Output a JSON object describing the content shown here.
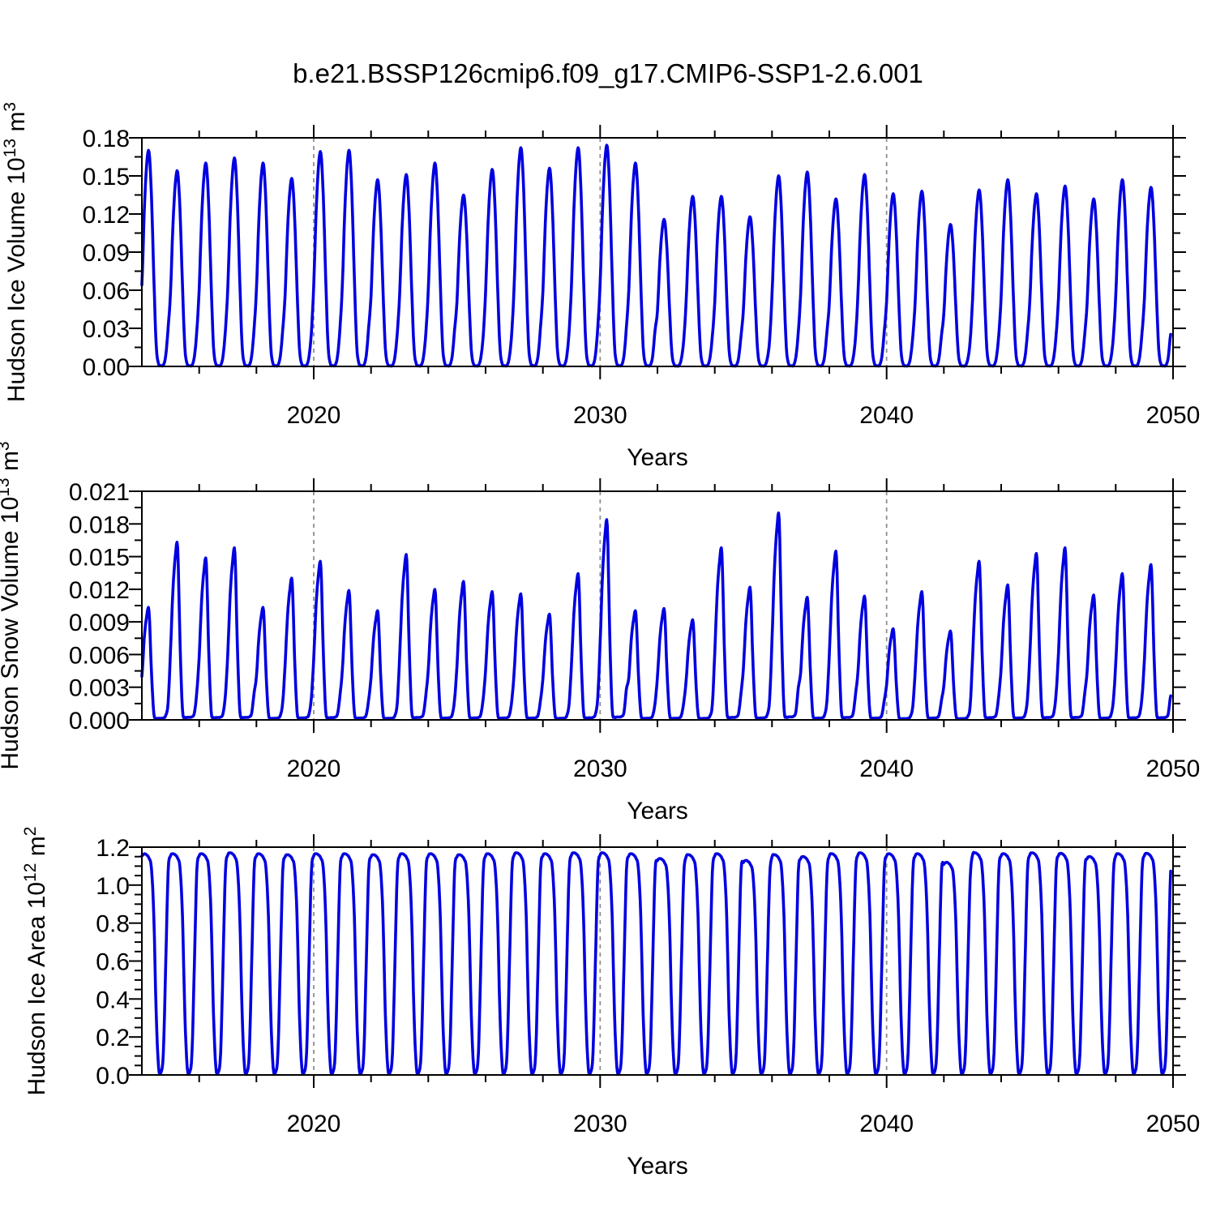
{
  "title": "b.e21.BSSP126cmip6.f09_g17.CMIP6-SSP1-2.6.001",
  "line_color": "#0000e0",
  "grid_color": "#8f8f8f",
  "chart_data": [
    {
      "type": "line",
      "name": "hudson-ice-volume",
      "ylabel_text": "Hudson Ice Volume 10",
      "ylabel_exp": "13",
      "ylabel_unit": " m",
      "ylabel_unit_exp": "3",
      "xlabel": "Years",
      "xlim": [
        2014,
        2050
      ],
      "ylim": [
        0,
        0.18
      ],
      "xticks": [
        2020,
        2030,
        2040,
        2050
      ],
      "x_minor_step": 2,
      "grid_x": [
        2020,
        2030,
        2040
      ],
      "yticks": [
        [
          "0.18",
          0.18
        ],
        [
          "0.15",
          0.15
        ],
        [
          "0.12",
          0.12
        ],
        [
          "0.09",
          0.09
        ],
        [
          "0.06",
          0.06
        ],
        [
          "0.03",
          0.03
        ],
        [
          "0.00",
          0.0
        ]
      ],
      "y_minor_step": 0.015,
      "years": [
        2014,
        2015,
        2016,
        2017,
        2018,
        2019,
        2020,
        2021,
        2022,
        2023,
        2024,
        2025,
        2026,
        2027,
        2028,
        2029,
        2030,
        2031,
        2032,
        2033,
        2034,
        2035,
        2036,
        2037,
        2038,
        2039,
        2040,
        2041,
        2042,
        2043,
        2044,
        2045,
        2046,
        2047,
        2048,
        2049
      ],
      "annual_peaks": [
        0.169,
        0.153,
        0.159,
        0.163,
        0.159,
        0.147,
        0.168,
        0.169,
        0.146,
        0.15,
        0.159,
        0.134,
        0.154,
        0.171,
        0.155,
        0.171,
        0.173,
        0.159,
        0.115,
        0.133,
        0.133,
        0.117,
        0.149,
        0.152,
        0.131,
        0.15,
        0.135,
        0.137,
        0.111,
        0.138,
        0.146,
        0.135,
        0.141,
        0.131,
        0.146,
        0.14
      ],
      "seasonal_profile": [
        0.38,
        0.72,
        0.94,
        1.0,
        0.8,
        0.42,
        0.1,
        0.012,
        0.004,
        0.006,
        0.05,
        0.18
      ],
      "profile_note": "monthly value = seasonal_profile[month] * annual_peaks[year], Jan..Dec"
    },
    {
      "type": "line",
      "name": "hudson-snow-volume",
      "ylabel_text": "Hudson Snow Volume 10",
      "ylabel_exp": "13",
      "ylabel_unit": " m",
      "ylabel_unit_exp": "3",
      "xlabel": "Years",
      "xlim": [
        2014,
        2050
      ],
      "ylim": [
        0,
        0.021
      ],
      "xticks": [
        2020,
        2030,
        2040,
        2050
      ],
      "x_minor_step": 2,
      "grid_x": [
        2020,
        2030,
        2040
      ],
      "yticks": [
        [
          "0.021",
          0.021
        ],
        [
          "0.018",
          0.018
        ],
        [
          "0.015",
          0.015
        ],
        [
          "0.012",
          0.012
        ],
        [
          "0.009",
          0.009
        ],
        [
          "0.006",
          0.006
        ],
        [
          "0.003",
          0.003
        ],
        [
          "0.000",
          0.0
        ]
      ],
      "y_minor_step": 0.0015,
      "years": [
        2014,
        2015,
        2016,
        2017,
        2018,
        2019,
        2020,
        2021,
        2022,
        2023,
        2024,
        2025,
        2026,
        2027,
        2028,
        2029,
        2030,
        2031,
        2032,
        2033,
        2034,
        2035,
        2036,
        2037,
        2038,
        2039,
        2040,
        2041,
        2042,
        2043,
        2044,
        2045,
        2046,
        2047,
        2048,
        2049
      ],
      "annual_peaks": [
        0.01,
        0.0158,
        0.0144,
        0.0153,
        0.01,
        0.0126,
        0.0141,
        0.0115,
        0.0097,
        0.0147,
        0.0116,
        0.0123,
        0.0114,
        0.0112,
        0.0094,
        0.013,
        0.0178,
        0.0097,
        0.0099,
        0.0089,
        0.0153,
        0.0118,
        0.0184,
        0.0109,
        0.015,
        0.011,
        0.0081,
        0.0114,
        0.0079,
        0.0141,
        0.012,
        0.0148,
        0.0153,
        0.0111,
        0.013,
        0.0138
      ],
      "seasonal_profile": [
        0.4,
        0.75,
        0.95,
        1.0,
        0.45,
        0.06,
        0.015,
        0.015,
        0.015,
        0.018,
        0.04,
        0.16
      ],
      "profile_note": "monthly value = seasonal_profile[month] * annual_peaks[year], Jan..Dec"
    },
    {
      "type": "line",
      "name": "hudson-ice-area",
      "ylabel_text": "Hudson Ice Area 10",
      "ylabel_exp": "12",
      "ylabel_unit": " m",
      "ylabel_unit_exp": "2",
      "xlabel": "Years",
      "xlim": [
        2014,
        2050
      ],
      "ylim": [
        0,
        1.2
      ],
      "xticks": [
        2020,
        2030,
        2040,
        2050
      ],
      "x_minor_step": 2,
      "grid_x": [
        2020,
        2030,
        2040
      ],
      "yticks": [
        [
          "1.2",
          1.2
        ],
        [
          "1.0",
          1.0
        ],
        [
          "0.8",
          0.8
        ],
        [
          "0.6",
          0.6
        ],
        [
          "0.4",
          0.4
        ],
        [
          "0.2",
          0.2
        ],
        [
          "0.0",
          0.0
        ]
      ],
      "y_minor_step": 0.05,
      "years": [
        2014,
        2015,
        2016,
        2017,
        2018,
        2019,
        2020,
        2021,
        2022,
        2023,
        2024,
        2025,
        2026,
        2027,
        2028,
        2029,
        2030,
        2031,
        2032,
        2033,
        2034,
        2035,
        2036,
        2037,
        2038,
        2039,
        2040,
        2041,
        2042,
        2043,
        2044,
        2045,
        2046,
        2047,
        2048,
        2049
      ],
      "annual_peaks": [
        1.165,
        1.165,
        1.165,
        1.17,
        1.165,
        1.16,
        1.165,
        1.165,
        1.16,
        1.165,
        1.165,
        1.16,
        1.165,
        1.17,
        1.165,
        1.17,
        1.17,
        1.165,
        1.14,
        1.16,
        1.165,
        1.13,
        1.16,
        1.15,
        1.165,
        1.17,
        1.165,
        1.165,
        1.12,
        1.17,
        1.165,
        1.17,
        1.167,
        1.15,
        1.165,
        1.167
      ],
      "seasonal_profile": [
        0.99,
        1.0,
        0.995,
        0.98,
        0.935,
        0.72,
        0.28,
        0.035,
        0.012,
        0.1,
        0.5,
        0.92
      ],
      "profile_note": "monthly value = seasonal_profile[month] * annual_peaks[year], Jan..Dec"
    }
  ]
}
